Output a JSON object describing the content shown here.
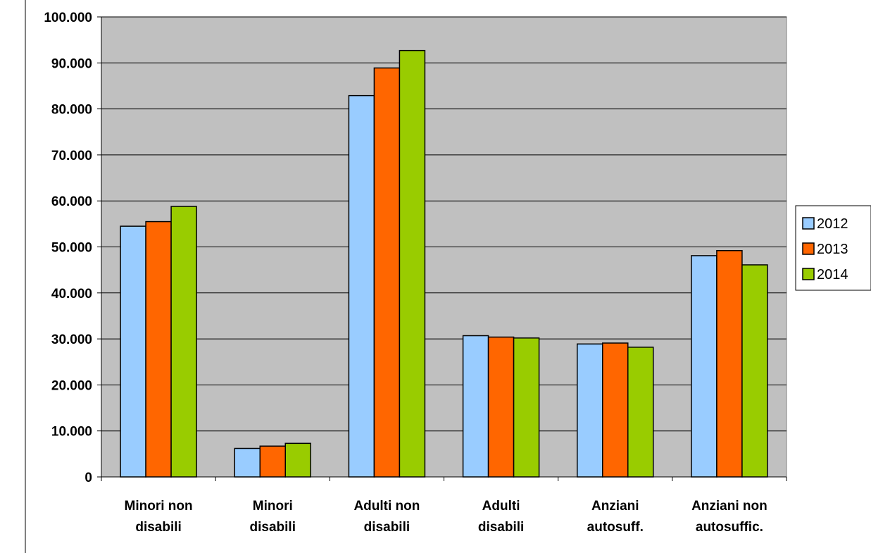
{
  "chart_data": {
    "type": "bar",
    "title": "",
    "xlabel": "",
    "ylabel": "",
    "categories": [
      [
        "Minori non",
        "disabili"
      ],
      [
        "Minori",
        "disabili"
      ],
      [
        "Adulti non",
        "disabili"
      ],
      [
        "Adulti",
        "disabili"
      ],
      [
        "Anziani",
        "autosuff."
      ],
      [
        "Anziani non",
        "autosuffic."
      ]
    ],
    "series": [
      {
        "name": "2012",
        "color": "#99ccff",
        "values": [
          54500,
          6200,
          82900,
          30700,
          28900,
          48100
        ]
      },
      {
        "name": "2013",
        "color": "#ff6600",
        "values": [
          55500,
          6700,
          88900,
          30400,
          29100,
          49200
        ]
      },
      {
        "name": "2014",
        "color": "#99cc00",
        "values": [
          58800,
          7300,
          92700,
          30200,
          28200,
          46100
        ]
      }
    ],
    "ylim": [
      0,
      100000
    ],
    "y_ticks": [
      {
        "value": 0,
        "label": "0"
      },
      {
        "value": 10000,
        "label": "10.000"
      },
      {
        "value": 20000,
        "label": "20.000"
      },
      {
        "value": 30000,
        "label": "30.000"
      },
      {
        "value": 40000,
        "label": "40.000"
      },
      {
        "value": 50000,
        "label": "50.000"
      },
      {
        "value": 60000,
        "label": "60.000"
      },
      {
        "value": 70000,
        "label": "70.000"
      },
      {
        "value": 80000,
        "label": "80.000"
      },
      {
        "value": 90000,
        "label": "90.000"
      },
      {
        "value": 100000,
        "label": "100.000"
      }
    ],
    "grid": true,
    "plot_background": "#c0c0c0",
    "legend_position": "right"
  }
}
